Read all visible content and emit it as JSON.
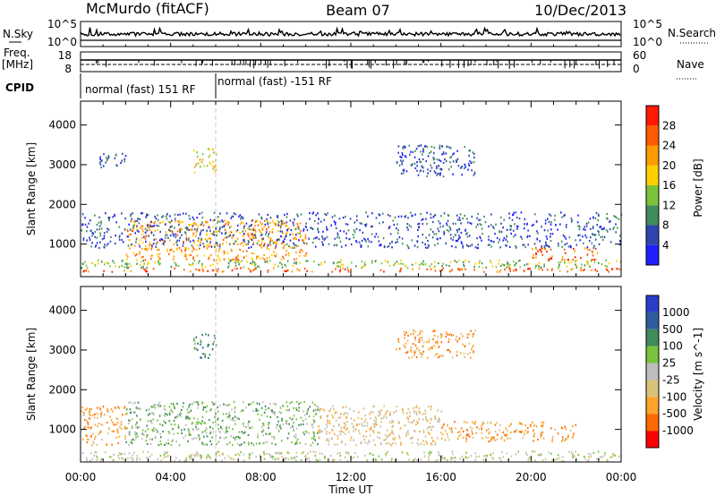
{
  "header": {
    "station": "McMurdo (fitACF)",
    "beam": "Beam 07",
    "date": "10/Dec/2013"
  },
  "noise_panel": {
    "left_label": "N.Sky",
    "right_label": "N.Search",
    "left_ticks": [
      "10^5",
      "10^0"
    ],
    "right_ticks": [
      "10^5",
      "10^0"
    ]
  },
  "freq_panel": {
    "left_label_1": "Freq.",
    "left_label_2": "[MHz]",
    "left_ticks": [
      "18",
      "8"
    ],
    "right_label": "Nave",
    "right_ticks": [
      "60",
      "0"
    ]
  },
  "cpid_panel": {
    "label": "CPID",
    "modes": [
      "normal (fast) 151 RF",
      "normal (fast) -151 RF"
    ],
    "mode_change_time": "06:00"
  },
  "x_axis": {
    "label": "Time UT",
    "ticks": [
      "00:00",
      "04:00",
      "08:00",
      "12:00",
      "16:00",
      "20:00",
      "00:00"
    ]
  },
  "colors": {
    "power": [
      "#1f1fff",
      "#2f45b0",
      "#3f8c5a",
      "#7cc13a",
      "#ffd000",
      "#ff9c00",
      "#ff5a00",
      "#ff1a00"
    ],
    "velocity": [
      "#ff0000",
      "#ff6a00",
      "#ffa32a",
      "#d8c27a",
      "#bdbdbd",
      "#7ac23e",
      "#3f8c5a",
      "#2f5d9b",
      "#2a3fc8"
    ]
  },
  "chart_data": [
    {
      "type": "heatmap",
      "title": "Power",
      "ylabel": "Slant Range [km]",
      "xlabel": "Time UT",
      "x_range": [
        "00:00",
        "24:00"
      ],
      "ylim": [
        180,
        4600
      ],
      "y_ticks": [
        1000,
        2000,
        3000,
        4000
      ],
      "colorbar_label": "Power [dB]",
      "colorbar_ticks": [
        "4",
        "8",
        "12",
        "16",
        "20",
        "24",
        "28"
      ],
      "scattered_echo_regions": [
        {
          "t_start": 0.0,
          "t_end": 24.0,
          "range_km": [
            300,
            400
          ],
          "level": "28"
        },
        {
          "t_start": 0.0,
          "t_end": 24.0,
          "range_km": [
            400,
            600
          ],
          "level": "16"
        },
        {
          "t_start": 2.0,
          "t_end": 10.0,
          "range_km": [
            600,
            1600
          ],
          "level": "24"
        },
        {
          "t_start": 0.0,
          "t_end": 24.0,
          "range_km": [
            900,
            1800
          ],
          "level": "8"
        },
        {
          "t_start": 0.8,
          "t_end": 2.0,
          "range_km": [
            2900,
            3300
          ],
          "level": "8"
        },
        {
          "t_start": 5.0,
          "t_end": 6.0,
          "range_km": [
            2800,
            3400
          ],
          "level": "20"
        },
        {
          "t_start": 14.0,
          "t_end": 17.5,
          "range_km": [
            2700,
            3500
          ],
          "level": "8"
        },
        {
          "t_start": 20.0,
          "t_end": 23.0,
          "range_km": [
            600,
            900
          ],
          "level": "28"
        }
      ]
    },
    {
      "type": "heatmap",
      "title": "Velocity",
      "ylabel": "Slant Range [km]",
      "xlabel": "Time UT",
      "x_range": [
        "00:00",
        "24:00"
      ],
      "ylim": [
        180,
        4600
      ],
      "y_ticks": [
        1000,
        2000,
        3000,
        4000
      ],
      "colorbar_label": "Velocity [m s^-1]",
      "colorbar_ticks": [
        "-1000",
        "-500",
        "-100",
        "-25",
        "25",
        "100",
        "500",
        "1000"
      ],
      "scattered_echo_regions": [
        {
          "t_start": 0.0,
          "t_end": 24.0,
          "range_km": [
            200,
            450
          ],
          "level": "25"
        },
        {
          "t_start": 0.0,
          "t_end": 2.0,
          "range_km": [
            600,
            1600
          ],
          "level": "-100"
        },
        {
          "t_start": 2.0,
          "t_end": 10.5,
          "range_km": [
            600,
            1700
          ],
          "level": "100"
        },
        {
          "t_start": 10.5,
          "t_end": 16.0,
          "range_km": [
            600,
            1600
          ],
          "level": "-25"
        },
        {
          "t_start": 16.0,
          "t_end": 22.0,
          "range_km": [
            700,
            1200
          ],
          "level": "-100"
        },
        {
          "t_start": 5.0,
          "t_end": 6.0,
          "range_km": [
            2800,
            3400
          ],
          "level": "500"
        },
        {
          "t_start": 14.0,
          "t_end": 17.5,
          "range_km": [
            2800,
            3500
          ],
          "level": "-100"
        }
      ]
    }
  ]
}
